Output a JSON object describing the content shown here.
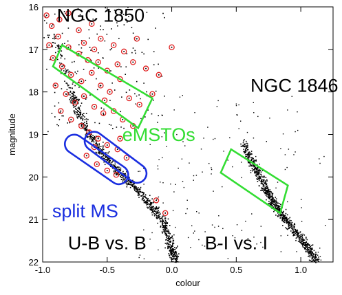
{
  "chart_data": {
    "type": "scatter",
    "xlabel": "colour",
    "ylabel": "magnitude",
    "xlim": [
      -1.0,
      1.25
    ],
    "ylim": [
      22.0,
      16.0
    ],
    "y_inverted": true,
    "xticks": [
      {
        "value": -1.0,
        "label": "-1.0"
      },
      {
        "value": -0.5,
        "label": "-0.5"
      },
      {
        "value": 0.0,
        "label": "0.0"
      },
      {
        "value": 0.5,
        "label": "0.5"
      },
      {
        "value": 1.0,
        "label": "1.0"
      }
    ],
    "yticks": [
      {
        "value": 16,
        "label": "16"
      },
      {
        "value": 17,
        "label": "17"
      },
      {
        "value": 18,
        "label": "18"
      },
      {
        "value": 19,
        "label": "19"
      },
      {
        "value": 20,
        "label": "20"
      },
      {
        "value": 21,
        "label": "21"
      },
      {
        "value": 22,
        "label": "22"
      }
    ],
    "grid": false,
    "series": [
      {
        "name": "U-B vs. B",
        "kind": "scatter",
        "color": "#000000",
        "ridge": [
          [
            -0.93,
            16.6
          ],
          [
            -0.88,
            17.0
          ],
          [
            -0.83,
            17.5
          ],
          [
            -0.78,
            18.0
          ],
          [
            -0.72,
            18.5
          ],
          [
            -0.64,
            19.0
          ],
          [
            -0.55,
            19.4
          ],
          [
            -0.45,
            19.75
          ],
          [
            -0.35,
            20.05
          ],
          [
            -0.25,
            20.35
          ],
          [
            -0.15,
            20.7
          ],
          [
            -0.07,
            21.05
          ],
          [
            -0.03,
            21.4
          ],
          [
            0.0,
            21.75
          ],
          [
            0.03,
            22.0
          ]
        ]
      },
      {
        "name": "B-I vs. I",
        "kind": "scatter",
        "color": "#000000",
        "ridge": [
          [
            0.55,
            19.2
          ],
          [
            0.63,
            19.7
          ],
          [
            0.7,
            20.1
          ],
          [
            0.75,
            20.4
          ],
          [
            0.8,
            20.7
          ],
          [
            0.88,
            21.0
          ],
          [
            0.97,
            21.35
          ],
          [
            1.05,
            21.65
          ],
          [
            1.12,
            22.0
          ]
        ]
      },
      {
        "name": "red circled stars",
        "kind": "scatter",
        "color": "#e02020",
        "points": [
          [
            -0.97,
            16.2
          ],
          [
            -0.93,
            16.45
          ],
          [
            -0.87,
            16.3
          ],
          [
            -0.8,
            16.15
          ],
          [
            -0.72,
            16.55
          ],
          [
            -0.62,
            16.4
          ],
          [
            -0.55,
            16.75
          ],
          [
            -0.45,
            16.9
          ],
          [
            -0.37,
            17.05
          ],
          [
            -0.3,
            17.3
          ],
          [
            -0.2,
            17.45
          ],
          [
            -0.1,
            17.6
          ],
          [
            0.0,
            16.95
          ],
          [
            -0.92,
            17.2
          ],
          [
            -0.85,
            17.4
          ],
          [
            -0.78,
            17.6
          ],
          [
            -0.7,
            17.75
          ],
          [
            -0.62,
            17.55
          ],
          [
            -0.55,
            17.85
          ],
          [
            -0.48,
            18.0
          ],
          [
            -0.4,
            17.7
          ],
          [
            -0.33,
            18.15
          ],
          [
            -0.25,
            18.3
          ],
          [
            -0.9,
            17.85
          ],
          [
            -0.82,
            18.05
          ],
          [
            -0.75,
            18.25
          ],
          [
            -0.68,
            18.1
          ],
          [
            -0.6,
            18.35
          ],
          [
            -0.53,
            18.5
          ],
          [
            -0.45,
            18.45
          ],
          [
            -0.38,
            18.65
          ],
          [
            -0.3,
            18.8
          ],
          [
            -0.86,
            18.45
          ],
          [
            -0.78,
            18.65
          ],
          [
            -0.7,
            18.8
          ],
          [
            -0.64,
            18.95
          ],
          [
            -0.57,
            19.1
          ],
          [
            -0.5,
            19.25
          ],
          [
            -0.42,
            19.35
          ],
          [
            -0.35,
            19.55
          ],
          [
            -0.66,
            19.5
          ],
          [
            -0.58,
            19.7
          ],
          [
            -0.5,
            19.85
          ],
          [
            -0.43,
            19.95
          ],
          [
            -0.95,
            16.9
          ],
          [
            -0.88,
            16.7
          ],
          [
            -0.8,
            16.95
          ],
          [
            -0.72,
            17.1
          ],
          [
            -0.65,
            17.25
          ],
          [
            -0.57,
            17.3
          ],
          [
            -0.5,
            17.5
          ],
          [
            -0.42,
            17.35
          ],
          [
            -0.27,
            16.75
          ],
          [
            -0.15,
            18.05
          ],
          [
            -0.68,
            16.85
          ],
          [
            -0.6,
            17.0
          ],
          [
            -0.52,
            18.2
          ],
          [
            -0.6,
            19.3
          ],
          [
            -0.4,
            19.1
          ],
          [
            -0.12,
            20.55
          ],
          [
            -0.05,
            20.85
          ]
        ]
      }
    ],
    "annotations": [
      {
        "text": "NGC 1850",
        "color": "#000000",
        "x": -0.55,
        "y": 16.35
      },
      {
        "text": "NGC 1846",
        "color": "#000000",
        "x": 0.95,
        "y": 18.0
      },
      {
        "text": "eMSTOs",
        "color": "#33dd33",
        "x": -0.1,
        "y": 19.15
      },
      {
        "text": "split MS",
        "color": "#1a2ee0",
        "x": -0.67,
        "y": 20.95
      },
      {
        "text": "U-B vs. B",
        "color": "#000000",
        "x": -0.5,
        "y": 21.7
      },
      {
        "text": "B-I vs. I",
        "color": "#000000",
        "x": 0.5,
        "y": 21.7
      }
    ],
    "regions": [
      {
        "name": "eMSTO box NGC 1850",
        "color": "#33dd33",
        "corners": [
          [
            -0.92,
            17.4
          ],
          [
            -0.85,
            16.9
          ],
          [
            -0.15,
            18.15
          ],
          [
            -0.26,
            18.85
          ]
        ]
      },
      {
        "name": "eMSTO box NGC 1846",
        "color": "#33dd33",
        "corners": [
          [
            0.38,
            19.9
          ],
          [
            0.46,
            19.35
          ],
          [
            0.9,
            20.2
          ],
          [
            0.84,
            20.85
          ]
        ]
      },
      {
        "name": "split MS left",
        "color": "#1a2ee0",
        "corners": [
          [
            -0.88,
            19.2
          ],
          [
            -0.75,
            19.0
          ],
          [
            -0.32,
            20.0
          ],
          [
            -0.38,
            20.15
          ]
        ]
      },
      {
        "name": "split MS right",
        "color": "#1a2ee0",
        "corners": [
          [
            -0.72,
            19.15
          ],
          [
            -0.6,
            18.9
          ],
          [
            -0.17,
            19.95
          ],
          [
            -0.25,
            20.15
          ]
        ]
      }
    ]
  }
}
